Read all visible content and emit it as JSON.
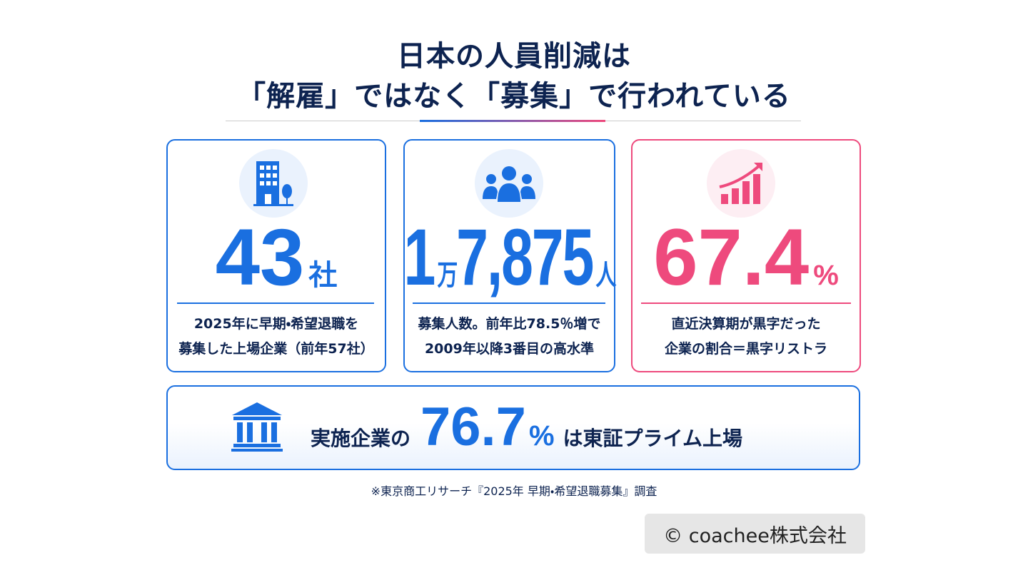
{
  "header": {
    "title_lines": [
      "日本の人員削減は",
      "「解雇」ではなく「募集」で行われている"
    ]
  },
  "cards": [
    {
      "figure": [
        "43",
        "社"
      ],
      "description": [
        "2025年に早期・希望退職を",
        "募集した上場企業（前年57社）"
      ]
    },
    {
      "figure": [
        "1",
        "万",
        "7,875",
        "人"
      ],
      "description": [
        "募集人数。前年比78.5％増で",
        "2009年以降3番目の高水準"
      ]
    },
    {
      "figure": [
        "67.4",
        "%"
      ],
      "description": [
        "直近決算期が黒字だった",
        "企業の割合＝黒字リストラ"
      ]
    }
  ],
  "banner": {
    "parts": [
      "実施企業の",
      "76.7",
      "%",
      "は東証プライム上場"
    ]
  },
  "source": "※東京商工リサーチ『2025年 早期・希望退職募集』調査",
  "copyright": "© coachee株式会社"
}
